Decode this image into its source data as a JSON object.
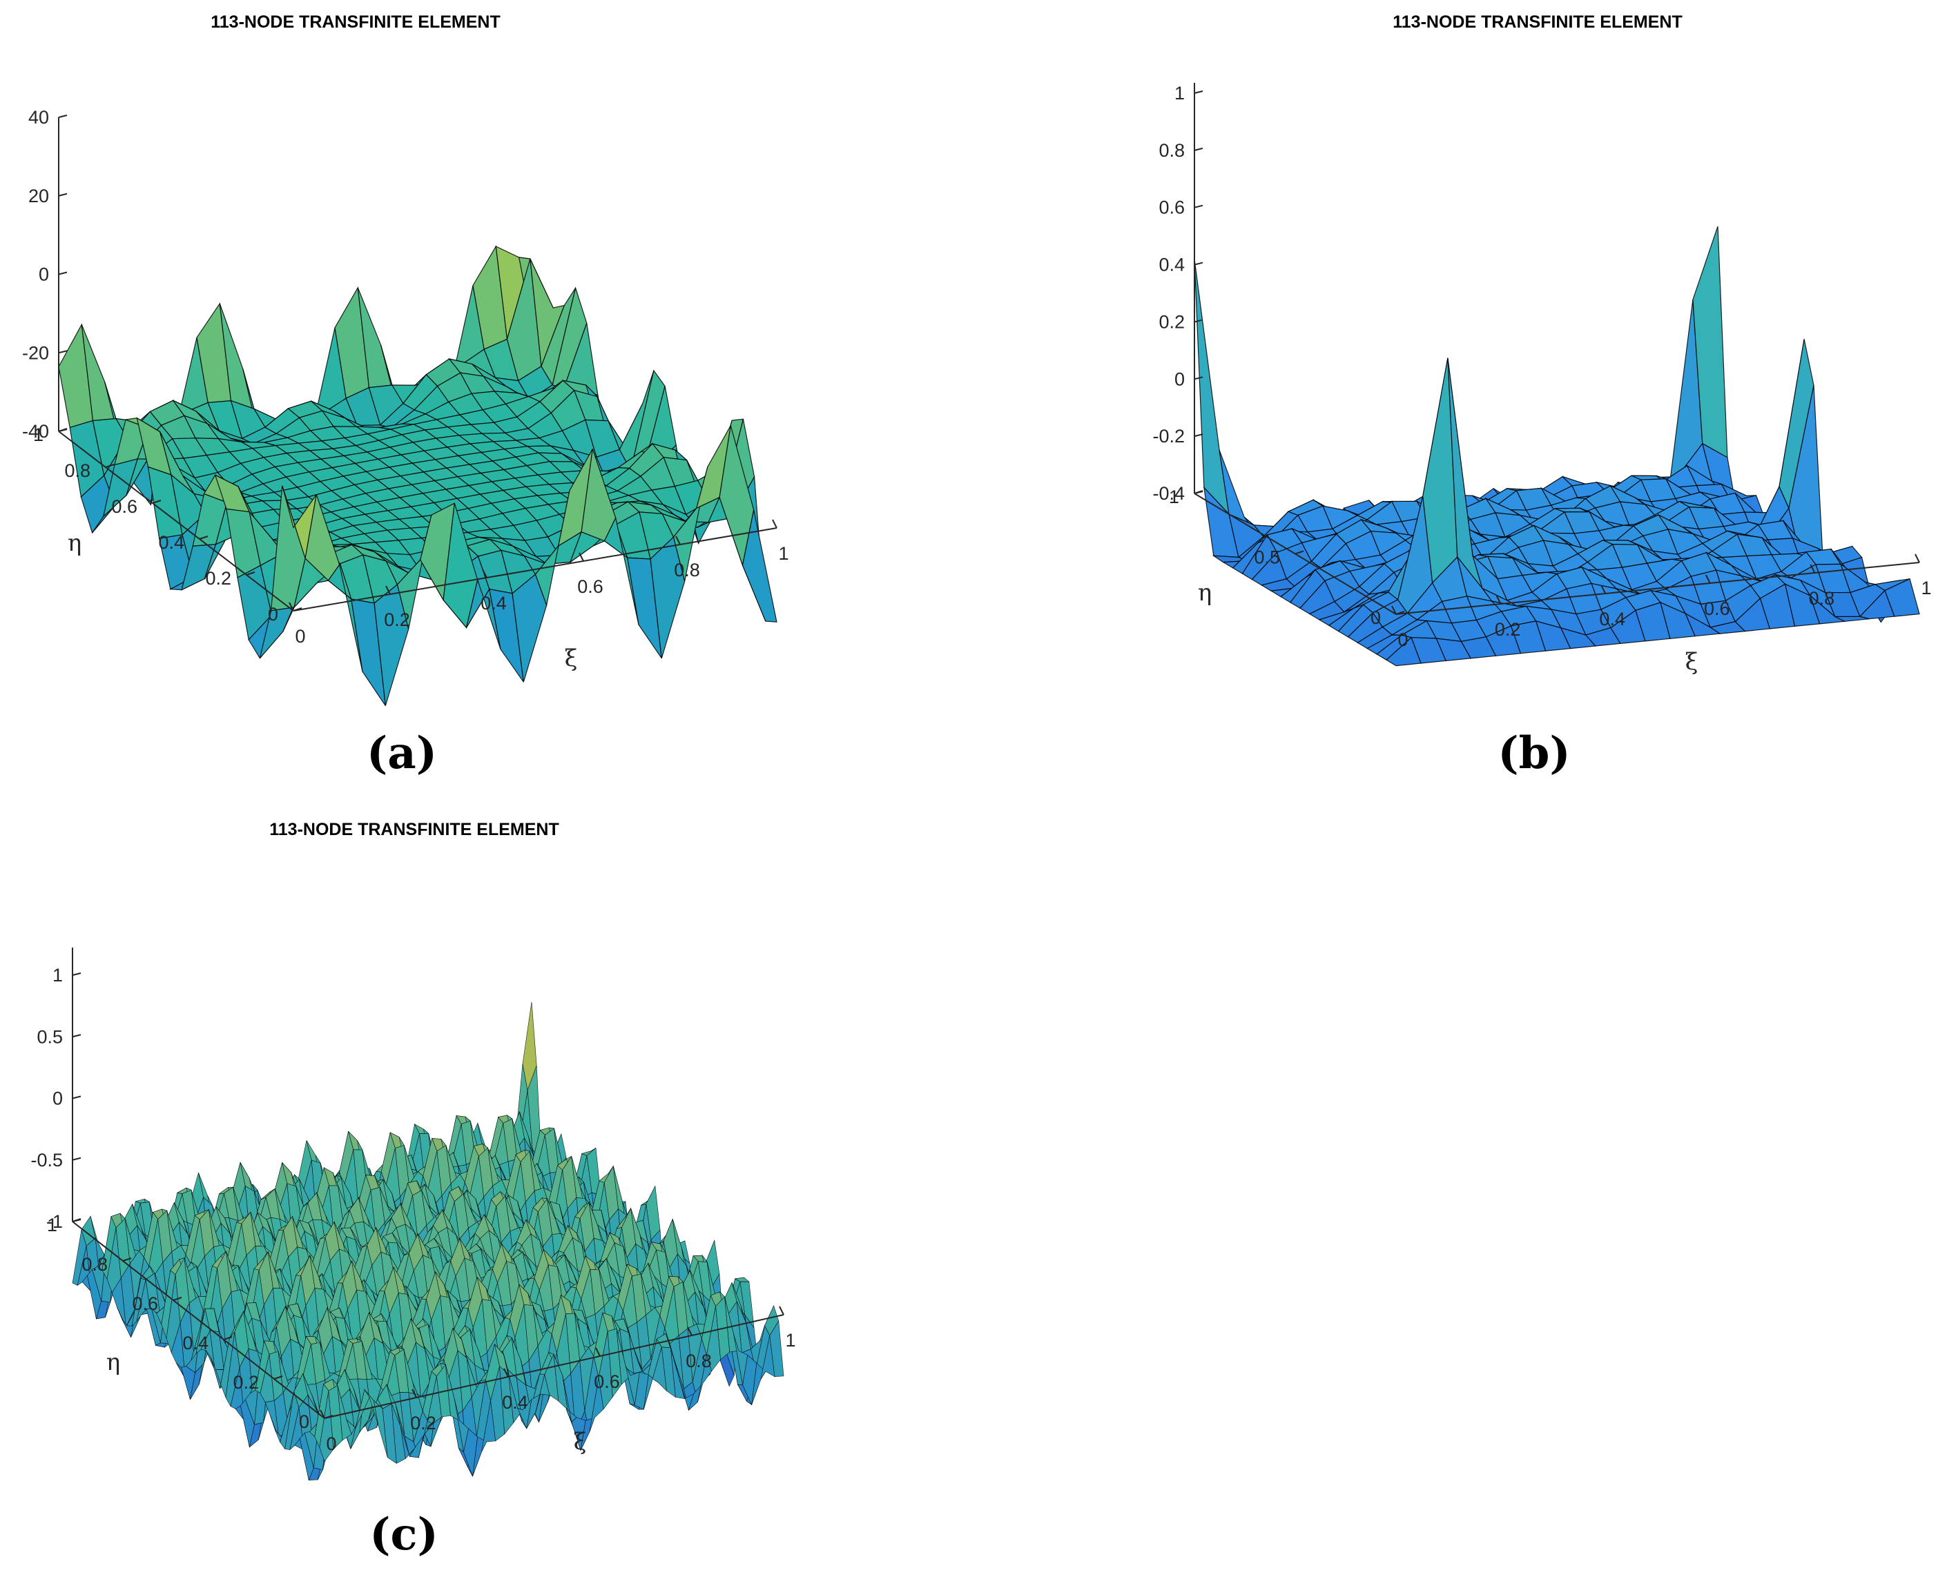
{
  "chart_data": [
    {
      "type": "surface",
      "panel_label": "(a)",
      "title": "113-NODE TRANSFINITE ELEMENT",
      "xlabel": "ξ",
      "ylabel": "η",
      "xlim": [
        0,
        1
      ],
      "ylim": [
        0,
        1
      ],
      "zlim": [
        -40,
        40
      ],
      "x_ticks": [
        "0",
        "0.2",
        "0.4",
        "0.6",
        "0.8",
        "1"
      ],
      "y_ticks": [
        "0",
        "0.2",
        "0.4",
        "0.6",
        "0.8",
        "1"
      ],
      "z_ticks": [
        "-40",
        "-20",
        "0",
        "20",
        "40"
      ],
      "grid_resolution": 21,
      "colormap": [
        "#3a2bd6",
        "#1f8fd6",
        "#29b5a3",
        "#8cc460",
        "#f5e61c"
      ],
      "edge_color": "#000000"
    },
    {
      "type": "surface",
      "panel_label": "(b)",
      "title": "113-NODE TRANSFINITE ELEMENT",
      "xlabel": "ξ",
      "ylabel": "η",
      "xlim": [
        0,
        1
      ],
      "ylim": [
        0,
        1
      ],
      "zlim": [
        -0.4,
        1
      ],
      "x_ticks": [
        "0",
        "0.2",
        "0.4",
        "0.6",
        "0.8",
        "1"
      ],
      "y_ticks": [
        "0",
        "0.5",
        "1"
      ],
      "z_ticks": [
        "-0.4",
        "-0.2",
        "0",
        "0.2",
        "0.4",
        "0.6",
        "0.8",
        "1"
      ],
      "grid_resolution": 21,
      "colormap": [
        "#1f5fd6",
        "#2f8fe6",
        "#33b0b8",
        "#8cc460",
        "#f5f51c"
      ],
      "edge_color": "#000000"
    },
    {
      "type": "surface",
      "panel_label": "(c)",
      "title": "113-NODE TRANSFINITE ELEMENT",
      "xlabel": "ξ",
      "ylabel": "η",
      "xlim": [
        0,
        1
      ],
      "ylim": [
        0,
        1
      ],
      "zlim": [
        -1,
        1
      ],
      "x_ticks": [
        "0",
        "0.2",
        "0.4",
        "0.6",
        "0.8",
        "1"
      ],
      "y_ticks": [
        "0",
        "0.2",
        "0.4",
        "0.6",
        "0.8",
        "1"
      ],
      "z_ticks": [
        "-1",
        "-0.5",
        "0",
        "0.5",
        "1"
      ],
      "grid_resolution": 51,
      "colormap": [
        "#2a4fd0",
        "#2890c8",
        "#3ab0a0",
        "#a6b85a",
        "#f0e01c"
      ],
      "edge_color": "#000000"
    }
  ]
}
